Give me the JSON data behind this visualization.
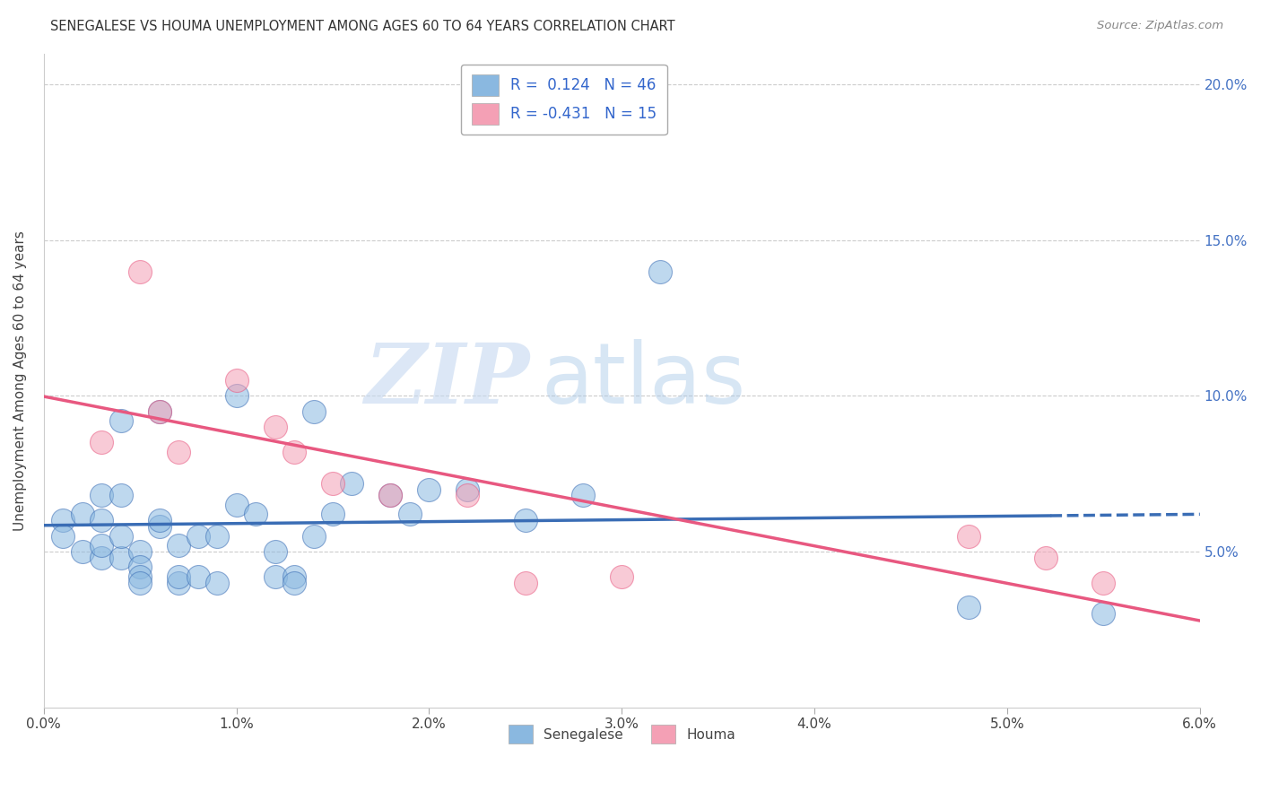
{
  "title": "SENEGALESE VS HOUMA UNEMPLOYMENT AMONG AGES 60 TO 64 YEARS CORRELATION CHART",
  "source": "Source: ZipAtlas.com",
  "ylabel": "Unemployment Among Ages 60 to 64 years",
  "xmin": 0.0,
  "xmax": 0.06,
  "ymin": 0.0,
  "ymax": 0.21,
  "yticks": [
    0.05,
    0.1,
    0.15,
    0.2
  ],
  "ytick_labels": [
    "5.0%",
    "10.0%",
    "15.0%",
    "20.0%"
  ],
  "xticks": [
    0.0,
    0.01,
    0.02,
    0.03,
    0.04,
    0.05,
    0.06
  ],
  "xtick_labels": [
    "0.0%",
    "1.0%",
    "2.0%",
    "3.0%",
    "4.0%",
    "5.0%",
    "6.0%"
  ],
  "blue_color": "#8ab8e0",
  "pink_color": "#f4a0b5",
  "blue_line_color": "#3a6db5",
  "pink_line_color": "#e85880",
  "senegalese_x": [
    0.001,
    0.001,
    0.002,
    0.002,
    0.003,
    0.003,
    0.003,
    0.003,
    0.004,
    0.004,
    0.004,
    0.004,
    0.005,
    0.005,
    0.005,
    0.005,
    0.006,
    0.006,
    0.006,
    0.007,
    0.007,
    0.007,
    0.008,
    0.008,
    0.009,
    0.009,
    0.01,
    0.01,
    0.011,
    0.012,
    0.012,
    0.013,
    0.013,
    0.014,
    0.014,
    0.015,
    0.016,
    0.018,
    0.019,
    0.02,
    0.022,
    0.025,
    0.028,
    0.032,
    0.048,
    0.055
  ],
  "senegalese_y": [
    0.06,
    0.055,
    0.05,
    0.062,
    0.048,
    0.06,
    0.052,
    0.068,
    0.048,
    0.055,
    0.068,
    0.092,
    0.05,
    0.045,
    0.042,
    0.04,
    0.058,
    0.06,
    0.095,
    0.04,
    0.042,
    0.052,
    0.042,
    0.055,
    0.04,
    0.055,
    0.065,
    0.1,
    0.062,
    0.05,
    0.042,
    0.042,
    0.04,
    0.095,
    0.055,
    0.062,
    0.072,
    0.068,
    0.062,
    0.07,
    0.07,
    0.06,
    0.068,
    0.14,
    0.032,
    0.03
  ],
  "houma_x": [
    0.003,
    0.005,
    0.006,
    0.007,
    0.01,
    0.012,
    0.013,
    0.015,
    0.018,
    0.022,
    0.025,
    0.03,
    0.048,
    0.052,
    0.055
  ],
  "houma_y": [
    0.085,
    0.14,
    0.095,
    0.082,
    0.105,
    0.09,
    0.082,
    0.072,
    0.068,
    0.068,
    0.04,
    0.042,
    0.055,
    0.048,
    0.04
  ],
  "watermark_zip": "ZIP",
  "watermark_atlas": "atlas",
  "background_color": "#ffffff",
  "grid_color": "#cccccc"
}
